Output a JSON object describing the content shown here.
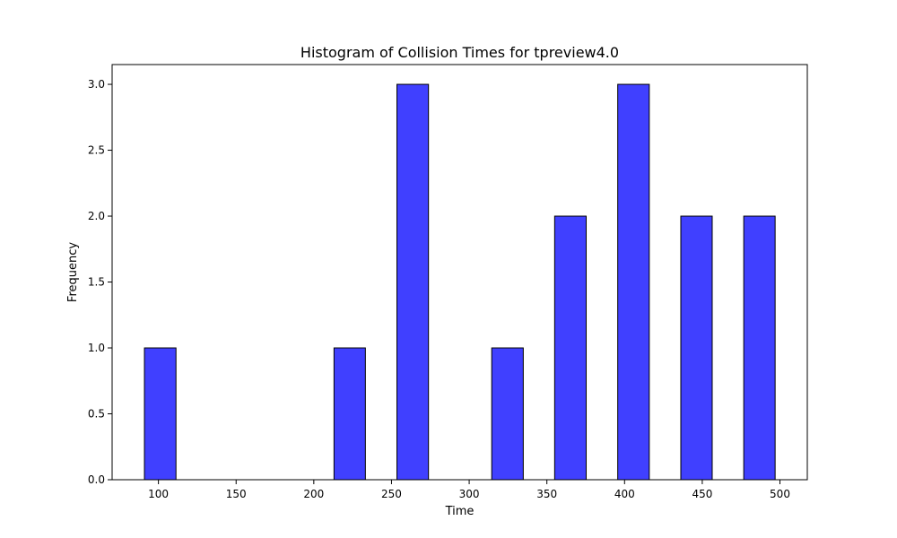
{
  "chart_data": {
    "type": "bar",
    "title": "Histogram of Collision Times for tpreview4.0",
    "xlabel": "Time",
    "ylabel": "Frequency",
    "xlim": [
      70.2,
      517.6
    ],
    "ylim": [
      0,
      3.15
    ],
    "x_ticks": [
      100,
      150,
      200,
      250,
      300,
      350,
      400,
      450,
      500
    ],
    "x_tick_labels": [
      "100",
      "150",
      "200",
      "250",
      "300",
      "350",
      "400",
      "450",
      "500"
    ],
    "y_ticks": [
      0,
      0.5,
      1.0,
      1.5,
      2.0,
      2.5,
      3.0
    ],
    "y_tick_labels": [
      "0.0",
      "0.5",
      "1.0",
      "1.5",
      "2.0",
      "2.5",
      "3.0"
    ],
    "bins": [
      {
        "x0": 91.0,
        "x1": 111.3,
        "value": 1
      },
      {
        "x0": 213.0,
        "x1": 233.2,
        "value": 1
      },
      {
        "x0": 253.5,
        "x1": 273.8,
        "value": 3
      },
      {
        "x0": 314.5,
        "x1": 334.8,
        "value": 1
      },
      {
        "x0": 355.0,
        "x1": 375.3,
        "value": 2
      },
      {
        "x0": 395.6,
        "x1": 415.9,
        "value": 3
      },
      {
        "x0": 436.2,
        "x1": 456.4,
        "value": 2
      },
      {
        "x0": 476.7,
        "x1": 496.9,
        "value": 2
      }
    ],
    "bar_color": "#4040ff",
    "edge_color": "#000000",
    "grid": false,
    "legend": "none"
  }
}
